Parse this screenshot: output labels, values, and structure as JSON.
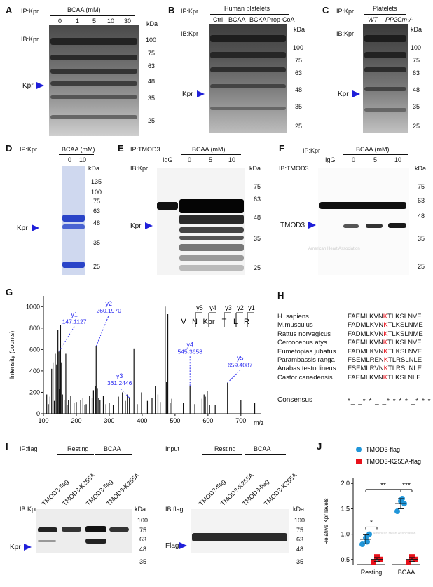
{
  "common": {
    "kda": "kDa",
    "kpr": "Kpr",
    "ip_kpr": "IP:Kpr",
    "ib_kpr": "IB:Kpr",
    "igg": "IgG",
    "bcaa_mm": "BCAA (mM)",
    "arrow_color": "#1f1fd9"
  },
  "panel_a": {
    "letter": "A",
    "ip": "IP:Kpr",
    "treatment": "BCAA (mM)",
    "lanes": [
      "0",
      "1",
      "5",
      "10",
      "30"
    ],
    "ib": "IB:Kpr",
    "markers": [
      "100",
      "75",
      "63",
      "48",
      "35",
      "25"
    ]
  },
  "panel_b": {
    "letter": "B",
    "ip": "IP:Kpr",
    "group": "Human platelets",
    "lanes": [
      "Ctrl",
      "BCAA",
      "BCKA",
      "Prop-CoA"
    ],
    "ib": "IB:Kpr",
    "markers": [
      "100",
      "75",
      "63",
      "48",
      "35",
      "25"
    ]
  },
  "panel_c": {
    "letter": "C",
    "ip": "IP:Kpr",
    "group": "Platelets",
    "lanes": [
      "WT",
      "PP2Cm-/-"
    ],
    "ib": "IB:Kpr",
    "markers": [
      "100",
      "75",
      "63",
      "48",
      "35",
      "25"
    ]
  },
  "panel_d": {
    "letter": "D",
    "ip": "IP:Kpr",
    "treatment": "BCAA (mM)",
    "lanes": [
      "0",
      "10"
    ],
    "markers": [
      "135",
      "100",
      "75",
      "63",
      "48",
      "35",
      "25"
    ]
  },
  "panel_e": {
    "letter": "E",
    "ip": "IP:TMOD3",
    "ib": "IB:Kpr",
    "treatment": "BCAA (mM)",
    "lanes": [
      "IgG",
      "0",
      "5",
      "10"
    ],
    "markers": [
      "75",
      "63",
      "48",
      "35",
      "25"
    ]
  },
  "panel_f": {
    "letter": "F",
    "ip": "IP:Kpr",
    "ib": "IB:TMOD3",
    "treatment": "BCAA (mM)",
    "lanes": [
      "IgG",
      "0",
      "5",
      "10"
    ],
    "markers": [
      "75",
      "63",
      "48",
      "35",
      "25"
    ],
    "target": "TMOD3",
    "watermark": "American Heart Association"
  },
  "panel_g": {
    "letter": "G",
    "ylabel": "Intensity (counts)",
    "xlabel": "m/z",
    "xticks": [
      "100",
      "200",
      "300",
      "400",
      "500",
      "600",
      "700"
    ],
    "yticks": [
      "0",
      "200",
      "400",
      "600",
      "800",
      "1000"
    ],
    "xlim": [
      100,
      760
    ],
    "ylim": [
      0,
      1100
    ],
    "sequence": [
      "V",
      "N",
      "Kpr",
      "T",
      "L",
      "R"
    ],
    "y_ions_top": [
      "y5",
      "y4",
      "y3",
      "y2",
      "y1"
    ],
    "annotations": [
      {
        "ion": "y1",
        "mz": "147.1127",
        "x": 147.1,
        "y": 580
      },
      {
        "ion": "y2",
        "mz": "260.1970",
        "x": 260.2,
        "y": 630
      },
      {
        "ion": "y3",
        "mz": "361.2446",
        "x": 361.2,
        "y": 150
      },
      {
        "ion": "y4",
        "mz": "545.3658",
        "x": 545.4,
        "y": 260
      },
      {
        "ion": "y5",
        "mz": "659.4087",
        "x": 659.4,
        "y": 290
      }
    ],
    "peaks": [
      [
        110,
        180
      ],
      [
        115,
        90
      ],
      [
        120,
        160
      ],
      [
        125,
        420
      ],
      [
        129,
        480
      ],
      [
        133,
        120
      ],
      [
        136,
        560
      ],
      [
        140,
        460
      ],
      [
        144,
        780
      ],
      [
        147.1,
        580
      ],
      [
        149,
        230
      ],
      [
        152,
        830
      ],
      [
        155,
        480
      ],
      [
        158,
        180
      ],
      [
        163,
        130
      ],
      [
        168,
        560
      ],
      [
        172,
        80
      ],
      [
        176,
        130
      ],
      [
        183,
        170
      ],
      [
        193,
        100
      ],
      [
        200,
        110
      ],
      [
        213,
        130
      ],
      [
        220,
        150
      ],
      [
        226,
        80
      ],
      [
        230,
        90
      ],
      [
        240,
        170
      ],
      [
        248,
        150
      ],
      [
        252,
        220
      ],
      [
        258,
        260
      ],
      [
        260.2,
        630
      ],
      [
        264,
        240
      ],
      [
        268,
        150
      ],
      [
        272,
        130
      ],
      [
        282,
        170
      ],
      [
        290,
        90
      ],
      [
        300,
        100
      ],
      [
        312,
        80
      ],
      [
        328,
        160
      ],
      [
        340,
        200
      ],
      [
        349,
        120
      ],
      [
        355,
        180
      ],
      [
        361.2,
        150
      ],
      [
        375,
        610
      ],
      [
        385,
        90
      ],
      [
        398,
        200
      ],
      [
        416,
        120
      ],
      [
        430,
        150
      ],
      [
        440,
        260
      ],
      [
        448,
        180
      ],
      [
        455,
        110
      ],
      [
        470,
        1000
      ],
      [
        474,
        300
      ],
      [
        478,
        930
      ],
      [
        485,
        100
      ],
      [
        490,
        140
      ],
      [
        525,
        100
      ],
      [
        545.4,
        260
      ],
      [
        560,
        90
      ],
      [
        582,
        140
      ],
      [
        588,
        180
      ],
      [
        592,
        160
      ],
      [
        598,
        210
      ],
      [
        605,
        80
      ],
      [
        622,
        80
      ],
      [
        659.4,
        290
      ],
      [
        700,
        130
      ],
      [
        742,
        100
      ]
    ]
  },
  "panel_h": {
    "letter": "H",
    "species": [
      "H. sapiens",
      "M.musculus",
      "Rattus norvegicus",
      "Cercocebus atys",
      "Eumetopias jubatus",
      "Parambassis ranga",
      "Anabas testudineus",
      "Castor canadensis"
    ],
    "sequences": [
      [
        "FAEMLKVN",
        "K",
        "TLKSLNVE"
      ],
      [
        "FADMLKVN",
        "K",
        "TLKSLNME"
      ],
      [
        "FADMLKVN",
        "K",
        "TLKSLNME"
      ],
      [
        "FAEMLKVN",
        "K",
        "TLKSLNVE"
      ],
      [
        "FADMLKVN",
        "K",
        "TLKSLNVE"
      ],
      [
        "FSEMLREN",
        "K",
        "TLRSLNLE"
      ],
      [
        "FSEMLRVN",
        "K",
        "TLRSLNLE"
      ],
      [
        "FAEMLKVN",
        "K",
        "TLKSLNLE"
      ]
    ],
    "consensus_label": "Consensus",
    "consensus": "*_ _* * _ _* * * * _* * * _ _*",
    "highlight_color": "#e8111b"
  },
  "panel_i": {
    "letter": "I",
    "left": {
      "ip": "IP:flag",
      "groups": [
        "Resting",
        "BCAA"
      ],
      "lanes": [
        "TMOD3-flag",
        "TMOD3-K255A",
        "TMOD3-flag",
        "TMOD3-K255A"
      ],
      "ib": "IB:Kpr",
      "markers": [
        "100",
        "75",
        "63",
        "48",
        "35"
      ],
      "target": "Kpr"
    },
    "right": {
      "label": "Input",
      "groups": [
        "Resting",
        "BCAA"
      ],
      "lanes": [
        "TMOD3-flag",
        "TMOD3-K255A",
        "TMOD3-flag",
        "TMOD3-K255A"
      ],
      "ib": "IB:flag",
      "markers": [
        "100",
        "75",
        "63",
        "48",
        "35"
      ],
      "target": "Flag"
    }
  },
  "panel_j": {
    "letter": "J",
    "ylabel": "Relative Kpr levels",
    "yticks": [
      "0.5",
      "1.0",
      "1.5",
      "2.0"
    ],
    "categories": [
      "Resting",
      "BCAA"
    ],
    "sig_labels": [
      "**",
      "***",
      "*"
    ],
    "watermark": "American Heart Association",
    "legend_flag": "TMOD3-flag",
    "legend_k255a": "TMOD3-K255A-flag",
    "color_flag": "#2196d9",
    "color_k255a": "#e8111b"
  },
  "chart_data": {
    "type": "scatter",
    "categories": [
      "Resting",
      "BCAA"
    ],
    "ylim": [
      0.4,
      2.1
    ],
    "ylabel": "Relative Kpr levels",
    "series": [
      {
        "name": "TMOD3-flag",
        "points": [
          [
            0.8,
            0.93,
            1.0,
            0.85
          ],
          [
            1.45,
            1.65,
            1.6,
            1.7
          ]
        ],
        "mean": [
          0.9,
          1.6
        ],
        "sd": [
          0.09,
          0.1
        ]
      },
      {
        "name": "TMOD3-K255A-flag",
        "points": [
          [
            0.45,
            0.55,
            0.5
          ],
          [
            0.45,
            0.55,
            0.5
          ]
        ],
        "mean": [
          0.5,
          0.5
        ],
        "sd": [
          0.04,
          0.04
        ]
      }
    ]
  }
}
